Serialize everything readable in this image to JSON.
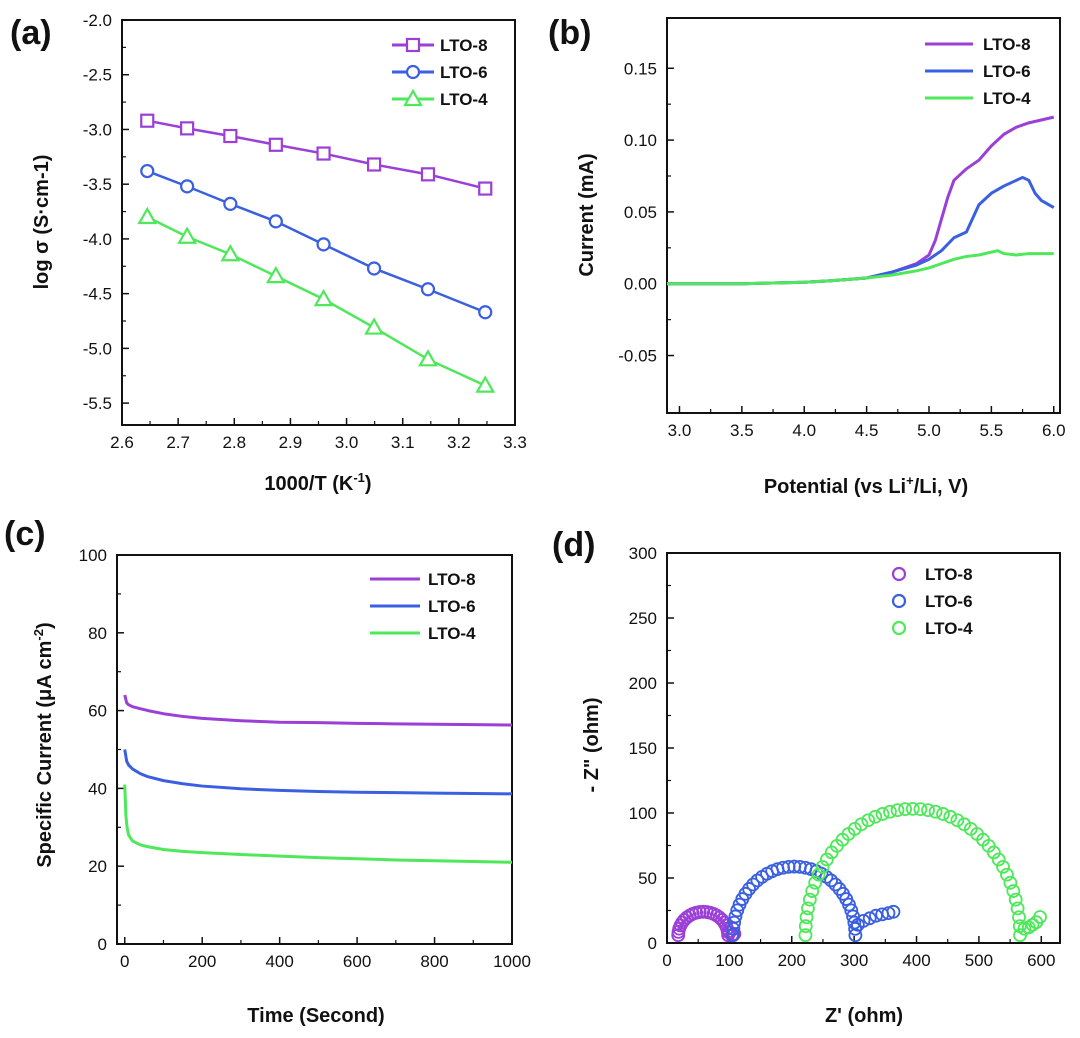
{
  "colors": {
    "LTO-8": "#9b3fd6",
    "LTO-6": "#3a5fe0",
    "LTO-4": "#4ee85a",
    "axis": "#111111"
  },
  "chart_data": [
    {
      "panel": "(a)",
      "type": "line",
      "marker_style": {
        "LTO-8": "square",
        "LTO-6": "circle",
        "LTO-4": "triangle"
      },
      "xlabel": "1000/T (K",
      "xlabel_sup": "-1",
      "xlabel_end": ")",
      "ylabel": "log σ (S·cm-1)",
      "xlim": [
        2.6,
        3.3
      ],
      "ylim": [
        -5.7,
        -2.0
      ],
      "xticks": [
        "2.6",
        "2.7",
        "2.8",
        "2.9",
        "3.0",
        "3.1",
        "3.2",
        "3.3"
      ],
      "yticks": [
        "-2.0",
        "-2.5",
        "-3.0",
        "-3.5",
        "-4.0",
        "-4.5",
        "-5.0",
        "-5.5"
      ],
      "legend": [
        "LTO-8",
        "LTO-6",
        "LTO-4"
      ],
      "legend_position": "top-right",
      "x": [
        2.645,
        2.716,
        2.793,
        2.874,
        2.959,
        3.049,
        3.145,
        3.247
      ],
      "series": [
        {
          "name": "LTO-8",
          "values": [
            -2.92,
            -2.99,
            -3.06,
            -3.14,
            -3.22,
            -3.32,
            -3.41,
            -3.54
          ]
        },
        {
          "name": "LTO-6",
          "values": [
            -3.38,
            -3.52,
            -3.68,
            -3.84,
            -4.05,
            -4.27,
            -4.46,
            -4.67
          ]
        },
        {
          "name": "LTO-4",
          "values": [
            -3.8,
            -3.98,
            -4.14,
            -4.34,
            -4.55,
            -4.81,
            -5.1,
            -5.34
          ]
        }
      ]
    },
    {
      "panel": "(b)",
      "type": "line",
      "xlabel": "Potential (vs Li",
      "xlabel_sup": "+",
      "xlabel_end": "/Li, V)",
      "ylabel": "Current (mA)",
      "xlim": [
        2.9,
        6.05
      ],
      "ylim": [
        -0.09,
        0.185
      ],
      "xticks": [
        "3.0",
        "3.5",
        "4.0",
        "4.5",
        "5.0",
        "5.5",
        "6.0"
      ],
      "yticks": [
        "0.15",
        "0.10",
        "0.05",
        "0.00",
        "-0.05"
      ],
      "legend": [
        "LTO-8",
        "LTO-6",
        "LTO-4"
      ],
      "legend_position": "top-right",
      "series": [
        {
          "name": "LTO-8",
          "x": [
            2.9,
            3.5,
            4.0,
            4.2,
            4.5,
            4.7,
            4.9,
            5.0,
            5.05,
            5.1,
            5.15,
            5.2,
            5.3,
            5.4,
            5.5,
            5.6,
            5.7,
            5.8,
            5.9,
            6.0
          ],
          "values": [
            0,
            0,
            0.001,
            0.002,
            0.004,
            0.008,
            0.014,
            0.02,
            0.03,
            0.045,
            0.06,
            0.072,
            0.08,
            0.086,
            0.096,
            0.104,
            0.109,
            0.112,
            0.114,
            0.116
          ]
        },
        {
          "name": "LTO-6",
          "x": [
            2.9,
            3.5,
            4.0,
            4.2,
            4.5,
            4.7,
            4.9,
            5.0,
            5.1,
            5.2,
            5.3,
            5.4,
            5.5,
            5.6,
            5.7,
            5.75,
            5.8,
            5.85,
            5.9,
            6.0
          ],
          "values": [
            0,
            0,
            0.001,
            0.002,
            0.004,
            0.008,
            0.013,
            0.017,
            0.023,
            0.032,
            0.036,
            0.055,
            0.063,
            0.068,
            0.072,
            0.074,
            0.072,
            0.063,
            0.058,
            0.053
          ]
        },
        {
          "name": "LTO-4",
          "x": [
            2.9,
            3.5,
            4.0,
            4.2,
            4.5,
            4.7,
            4.9,
            5.0,
            5.1,
            5.2,
            5.3,
            5.4,
            5.5,
            5.55,
            5.6,
            5.7,
            5.8,
            5.9,
            6.0
          ],
          "values": [
            0,
            0,
            0.001,
            0.002,
            0.004,
            0.006,
            0.009,
            0.011,
            0.014,
            0.017,
            0.019,
            0.02,
            0.022,
            0.023,
            0.021,
            0.02,
            0.021,
            0.021,
            0.021
          ]
        }
      ]
    },
    {
      "panel": "(c)",
      "type": "line",
      "xlabel": "Time (Second)",
      "ylabel": "Specific Current (μA cm",
      "ylabel_sup": "-2",
      "ylabel_end": ")",
      "xlim": [
        -20,
        1000
      ],
      "ylim": [
        0,
        100
      ],
      "xticks": [
        "0",
        "200",
        "400",
        "600",
        "800",
        "1000"
      ],
      "yticks": [
        "0",
        "20",
        "40",
        "60",
        "80",
        "100"
      ],
      "legend": [
        "LTO-8",
        "LTO-6",
        "LTO-4"
      ],
      "legend_position": "top-right",
      "series": [
        {
          "name": "LTO-8",
          "x": [
            0,
            5,
            10,
            20,
            40,
            60,
            100,
            150,
            200,
            300,
            400,
            500,
            600,
            700,
            800,
            900,
            1000
          ],
          "values": [
            64,
            62,
            61.5,
            61,
            60.5,
            60,
            59.2,
            58.5,
            58,
            57.4,
            57,
            56.9,
            56.7,
            56.6,
            56.5,
            56.4,
            56.3
          ]
        },
        {
          "name": "LTO-6",
          "x": [
            0,
            5,
            10,
            20,
            40,
            60,
            100,
            150,
            200,
            300,
            400,
            500,
            600,
            700,
            800,
            900,
            1000
          ],
          "values": [
            50,
            47,
            46,
            45,
            43.8,
            43,
            42,
            41.2,
            40.6,
            39.9,
            39.5,
            39.2,
            39.0,
            38.9,
            38.8,
            38.7,
            38.6
          ]
        },
        {
          "name": "LTO-4",
          "x": [
            0,
            3,
            6,
            10,
            20,
            40,
            60,
            100,
            150,
            200,
            300,
            400,
            500,
            600,
            700,
            800,
            900,
            1000
          ],
          "values": [
            41,
            33,
            30,
            28,
            26.5,
            25.5,
            25,
            24.3,
            23.8,
            23.5,
            23.0,
            22.6,
            22.2,
            21.9,
            21.6,
            21.4,
            21.2,
            21.0
          ]
        }
      ]
    },
    {
      "panel": "(d)",
      "type": "scatter",
      "marker_style": "open-circle",
      "xlabel": "Z' (ohm)",
      "ylabel": "- Z\" (ohm)",
      "xlim": [
        0,
        630
      ],
      "ylim": [
        0,
        300
      ],
      "xticks": [
        "0",
        "100",
        "200",
        "300",
        "400",
        "500",
        "600"
      ],
      "yticks": [
        "0",
        "50",
        "100",
        "150",
        "200",
        "250",
        "300"
      ],
      "legend": [
        "LTO-8",
        "LTO-6",
        "LTO-4"
      ],
      "legend_position": "top-right",
      "series": [
        {
          "name": "LTO-8",
          "center": 58,
          "radius": 40,
          "n": 22,
          "tail": [
            [
              100,
              8
            ],
            [
              104,
              6
            ],
            [
              108,
              7
            ]
          ]
        },
        {
          "name": "LTO-6",
          "center": 204,
          "radius": 98,
          "n": 34,
          "tail": [
            [
              306,
              14
            ],
            [
              315,
              17
            ],
            [
              325,
              19
            ],
            [
              335,
              21
            ],
            [
              345,
              22
            ],
            [
              355,
              23
            ],
            [
              363,
              24
            ]
          ]
        },
        {
          "name": "LTO-4",
          "center": 394,
          "radius": 172,
          "n": 44,
          "tail": [
            [
              573,
              11
            ],
            [
              580,
              12
            ],
            [
              586,
              14
            ],
            [
              592,
              16
            ],
            [
              598,
              20
            ]
          ]
        }
      ]
    }
  ]
}
